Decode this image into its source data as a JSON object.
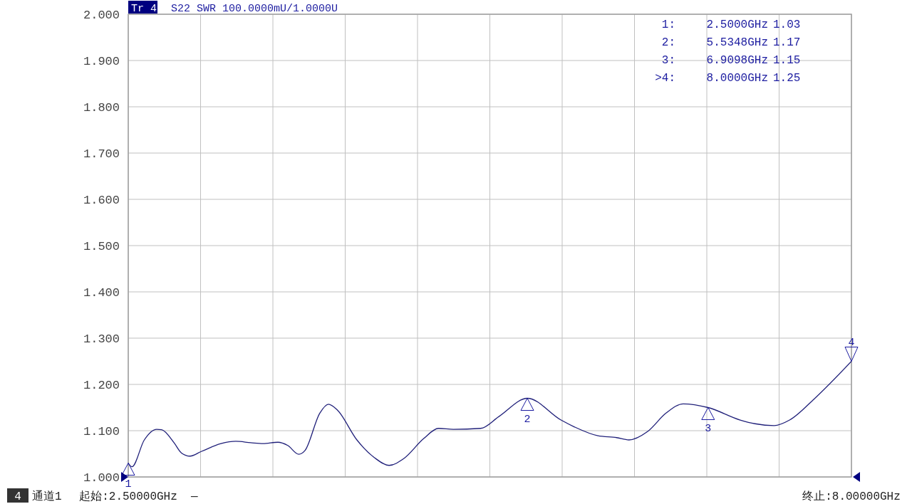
{
  "chart_data": {
    "type": "line",
    "title": "S22 SWR 100.0000mU/1.0000U",
    "subtitle": "Tr 4",
    "x": [
      2.5,
      2.528,
      2.622,
      2.716,
      2.754,
      2.848,
      2.904,
      2.97,
      3.055,
      3.205,
      3.318,
      3.431,
      3.525,
      3.638,
      3.713,
      3.797,
      3.844,
      3.957,
      4.023,
      4.089,
      4.239,
      4.371,
      4.484,
      4.597,
      4.747,
      4.86,
      4.973,
      5.18,
      5.321,
      5.5348,
      5.791,
      5.894,
      6.072,
      6.214,
      6.308,
      6.449,
      6.59,
      6.721,
      6.9098,
      7.154,
      7.267,
      7.412,
      7.53,
      7.718,
      8.0
    ],
    "series": [
      {
        "color": "#20207a",
        "values": [
          1.03,
          1.022,
          1.08,
          1.103,
          1.102,
          1.074,
          1.052,
          1.045,
          1.055,
          1.072,
          1.077,
          1.074,
          1.072,
          1.075,
          1.068,
          1.049,
          1.057,
          1.138,
          1.157,
          1.145,
          1.08,
          1.042,
          1.025,
          1.04,
          1.083,
          1.105,
          1.103,
          1.105,
          1.131,
          1.17,
          1.123,
          1.108,
          1.089,
          1.085,
          1.08,
          1.098,
          1.138,
          1.158,
          1.15,
          1.123,
          1.115,
          1.111,
          1.123,
          1.169,
          1.25
        ]
      }
    ],
    "xlim": [
      2.5,
      8.0
    ],
    "xticks": [
      {
        "value": 2.5,
        "label": "起始:2.50000GHz"
      },
      {
        "value": 3.05,
        "label": null
      },
      {
        "value": 3.6,
        "label": null
      },
      {
        "value": 4.15,
        "label": null
      },
      {
        "value": 4.7,
        "label": null
      },
      {
        "value": 5.25,
        "label": null
      },
      {
        "value": 5.8,
        "label": null
      },
      {
        "value": 6.35,
        "label": null
      },
      {
        "value": 6.9,
        "label": null
      },
      {
        "value": 7.45,
        "label": null
      },
      {
        "value": 8.0,
        "label": "终止:8.00000GHz"
      }
    ],
    "ylim": [
      1.0,
      2.0
    ],
    "yticks": [
      {
        "value": 1.0,
        "label": "1.000"
      },
      {
        "value": 1.1,
        "label": "1.100"
      },
      {
        "value": 1.2,
        "label": "1.200"
      },
      {
        "value": 1.3,
        "label": "1.300"
      },
      {
        "value": 1.4,
        "label": "1.400"
      },
      {
        "value": 1.5,
        "label": "1.500"
      },
      {
        "value": 1.6,
        "label": "1.600"
      },
      {
        "value": 1.7,
        "label": "1.700"
      },
      {
        "value": 1.8,
        "label": "1.800"
      },
      {
        "value": 1.9,
        "label": "1.900"
      },
      {
        "value": 2.0,
        "label": "2.000"
      }
    ],
    "grid": true,
    "marker": "none",
    "line_style": "solid",
    "annotations": [
      {
        "text": "1",
        "x": 2.5,
        "y": 1.03
      },
      {
        "text": "2",
        "x": 5.5348,
        "y": 1.17
      },
      {
        "text": "3",
        "x": 6.9098,
        "y": 1.15
      },
      {
        "text": "4",
        "x": 8.0,
        "y": 1.25
      },
      "1:",
      "2.5000GHz",
      "1.03",
      "2:",
      "5.5348GHz",
      "1.17",
      "3:",
      "6.9098GHz",
      "1.15",
      ">4:",
      "8.0000GHz",
      "1.25",
      "4",
      "通道1",
      "—"
    ]
  }
}
